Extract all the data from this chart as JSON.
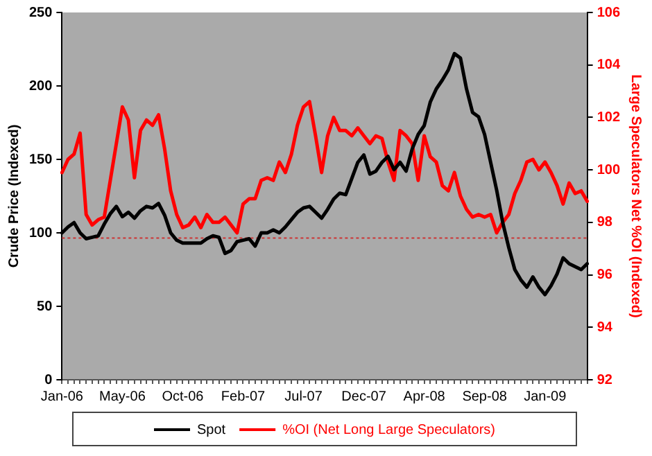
{
  "chart_data": {
    "type": "line",
    "ylabel": "Crude Price (Indexed)",
    "y2label": "Large Speculators Net %OI (Indexed)",
    "categories": [
      "Jan-06",
      null,
      null,
      null,
      null,
      null,
      null,
      null,
      null,
      null,
      "May-06",
      null,
      null,
      null,
      null,
      null,
      null,
      null,
      null,
      null,
      "Oct-06",
      null,
      null,
      null,
      null,
      null,
      null,
      null,
      null,
      null,
      "Feb-07",
      null,
      null,
      null,
      null,
      null,
      null,
      null,
      null,
      null,
      "Jul-07",
      null,
      null,
      null,
      null,
      null,
      null,
      null,
      null,
      null,
      "Dec-07",
      null,
      null,
      null,
      null,
      null,
      null,
      null,
      null,
      null,
      "Apr-08",
      null,
      null,
      null,
      null,
      null,
      null,
      null,
      null,
      null,
      "Sep-08",
      null,
      null,
      null,
      null,
      null,
      null,
      null,
      null,
      null,
      "Jan-09",
      null,
      null,
      null,
      null,
      null,
      null,
      null
    ],
    "series": [
      {
        "name": "Spot",
        "color": "#000000",
        "values": [
          100,
          104,
          107,
          100,
          96,
          97,
          98,
          106,
          113,
          118,
          111,
          114,
          110,
          115,
          118,
          117,
          120,
          112,
          100,
          95,
          93,
          93,
          93,
          93,
          96,
          98,
          97,
          86,
          88,
          94,
          95,
          96,
          91,
          100,
          100,
          102,
          100,
          104,
          109,
          114,
          117,
          118,
          114,
          110,
          116,
          123,
          127,
          126,
          137,
          148,
          153,
          140,
          142,
          148,
          152,
          143,
          148,
          142,
          157,
          167,
          173,
          189,
          198,
          204,
          211,
          222,
          219,
          198,
          182,
          179,
          167,
          148,
          129,
          107,
          90,
          75,
          68,
          63,
          70,
          63,
          58,
          64,
          72,
          83,
          79,
          77,
          75,
          79
        ]
      },
      {
        "name": "%OI (Net Long Large Speculators)",
        "color": "#ff0000",
        "axis": "y2",
        "values": [
          99.9,
          100.4,
          100.6,
          101.4,
          98.3,
          97.9,
          98.1,
          98.2,
          99.6,
          101.0,
          102.4,
          101.9,
          99.7,
          101.5,
          101.9,
          101.7,
          102.1,
          100.8,
          99.2,
          98.3,
          97.8,
          97.9,
          98.2,
          97.8,
          98.3,
          98.0,
          98.0,
          98.2,
          97.9,
          97.6,
          98.7,
          98.9,
          98.9,
          99.6,
          99.7,
          99.6,
          100.3,
          99.9,
          100.6,
          101.7,
          102.4,
          102.6,
          101.3,
          99.9,
          101.3,
          102.0,
          101.5,
          101.5,
          101.3,
          101.6,
          101.3,
          101.0,
          101.3,
          101.2,
          100.3,
          99.6,
          101.5,
          101.3,
          101.0,
          99.6,
          101.3,
          100.5,
          100.3,
          99.4,
          99.2,
          99.9,
          99.0,
          98.5,
          98.2,
          98.3,
          98.2,
          98.3,
          97.6,
          98.0,
          98.3,
          99.1,
          99.6,
          100.3,
          100.4,
          100.0,
          100.3,
          99.9,
          99.4,
          98.7,
          99.5,
          99.1,
          99.2,
          98.8
        ]
      }
    ],
    "ylim": [
      0,
      250
    ],
    "yticks": [
      0,
      50,
      100,
      150,
      200,
      250
    ],
    "y2lim": [
      92,
      106
    ],
    "y2ticks": [
      92,
      94,
      96,
      98,
      100,
      102,
      104,
      106
    ],
    "ref_lines": [
      {
        "axis": "y2",
        "value": 97.4,
        "color": "#cc3333",
        "line_style": "dotted"
      }
    ],
    "legend": "bottom",
    "grid": false,
    "marker": "none",
    "line_style": "solid"
  }
}
